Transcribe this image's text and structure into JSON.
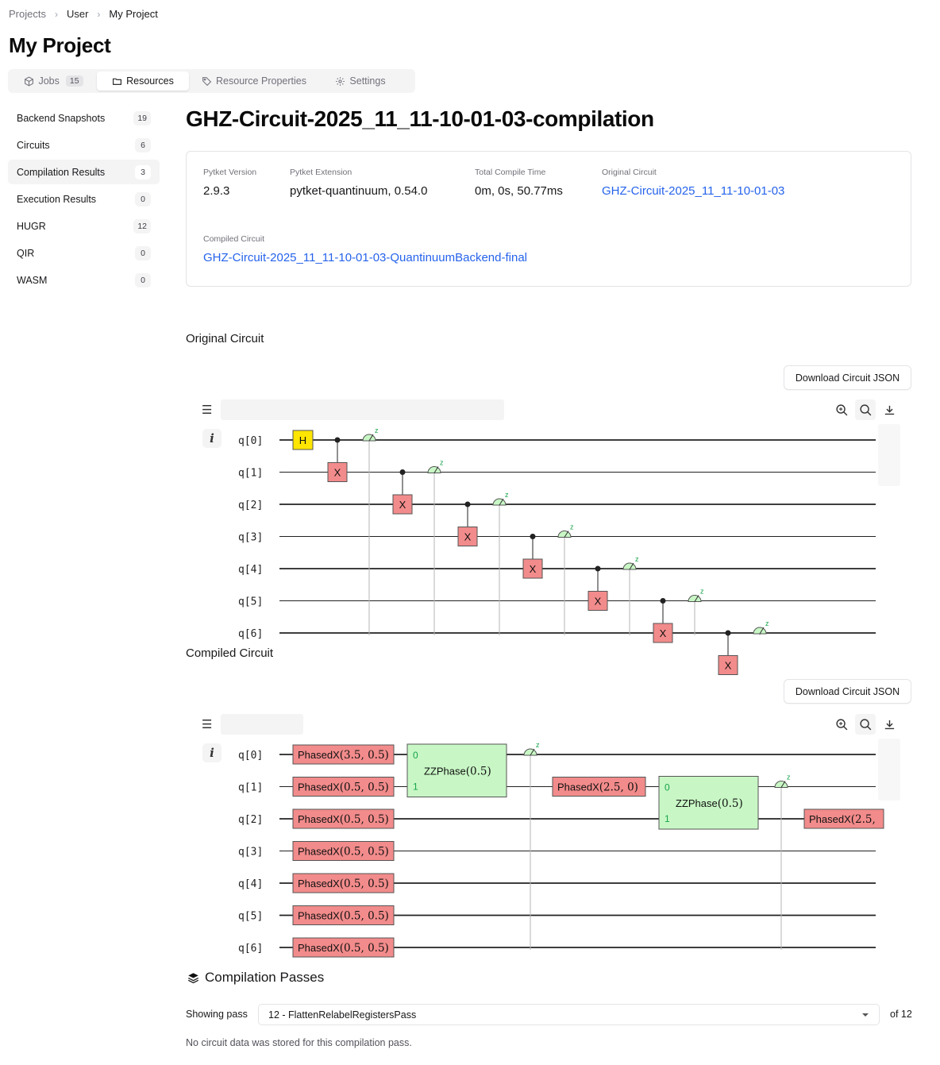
{
  "breadcrumb": [
    "Projects",
    "User",
    "My Project"
  ],
  "page_title": "My Project",
  "tabs": [
    {
      "label": "Jobs",
      "badge": "15",
      "icon": "cube-icon"
    },
    {
      "label": "Resources",
      "icon": "folder-icon"
    },
    {
      "label": "Resource Properties",
      "icon": "tag-icon"
    },
    {
      "label": "Settings",
      "icon": "gear-icon"
    }
  ],
  "sidebar": {
    "items": [
      {
        "label": "Backend Snapshots",
        "count": "19"
      },
      {
        "label": "Circuits",
        "count": "6"
      },
      {
        "label": "Compilation Results",
        "count": "3"
      },
      {
        "label": "Execution Results",
        "count": "0"
      },
      {
        "label": "HUGR",
        "count": "12"
      },
      {
        "label": "QIR",
        "count": "0"
      },
      {
        "label": "WASM",
        "count": "0"
      }
    ]
  },
  "resource": {
    "title": "GHZ-Circuit-2025_11_11-10-01-03-compilation",
    "fields": {
      "pytket_version": {
        "label": "Pytket Version",
        "value": "2.9.3"
      },
      "pytket_extension": {
        "label": "Pytket Extension",
        "value": "pytket-quantinuum, 0.54.0"
      },
      "compile_time": {
        "label": "Total Compile Time",
        "value": "0m, 0s, 50.77ms"
      },
      "original_circuit": {
        "label": "Original Circuit",
        "value": "GHZ-Circuit-2025_11_11-10-01-03"
      },
      "compiled_circuit": {
        "label": "Compiled Circuit",
        "value": "GHZ-Circuit-2025_11_11-10-01-03-QuantinuumBackend-final"
      }
    }
  },
  "original_section": {
    "title": "Original Circuit",
    "download_label": "Download Circuit JSON",
    "qubits": [
      "q[0]",
      "q[1]",
      "q[2]",
      "q[3]",
      "q[4]",
      "q[5]",
      "q[6]"
    ],
    "gates": {
      "h": "H",
      "x": "X"
    },
    "measure_basis": "z"
  },
  "compiled_section": {
    "title": "Compiled Circuit",
    "download_label": "Download Circuit JSON",
    "qubits": [
      "q[0]",
      "q[1]",
      "q[2]",
      "q[3]",
      "q[4]",
      "q[5]",
      "q[6]"
    ],
    "phasedx_name": "PhasedX",
    "phasedx_params": [
      "(3.5, 0.5)",
      "(0.5, 0.5)",
      "(0.5, 0.5)",
      "(0.5, 0.5)",
      "(0.5, 0.5)",
      "(0.5, 0.5)",
      "(0.5, 0.5)"
    ],
    "phasedx_mid": "(2.5, 0)",
    "phasedx_end": "(2.5,",
    "zzphase_name": "ZZPhase",
    "zzphase_param": "(0.5)",
    "ports": [
      "0",
      "1"
    ],
    "measure_basis": "z"
  },
  "passes": {
    "title": "Compilation Passes",
    "showing_label": "Showing pass",
    "selected": "12 - FlattenRelabelRegistersPass",
    "of_label": "of 12",
    "no_data": "No circuit data was stored for this compilation pass."
  },
  "colors": {
    "link": "#2563eb",
    "x_gate": "#f28b8b",
    "h_gate": "#ffe600",
    "zz_gate": "#c8f7c5",
    "measure": "#c8f7c5"
  }
}
